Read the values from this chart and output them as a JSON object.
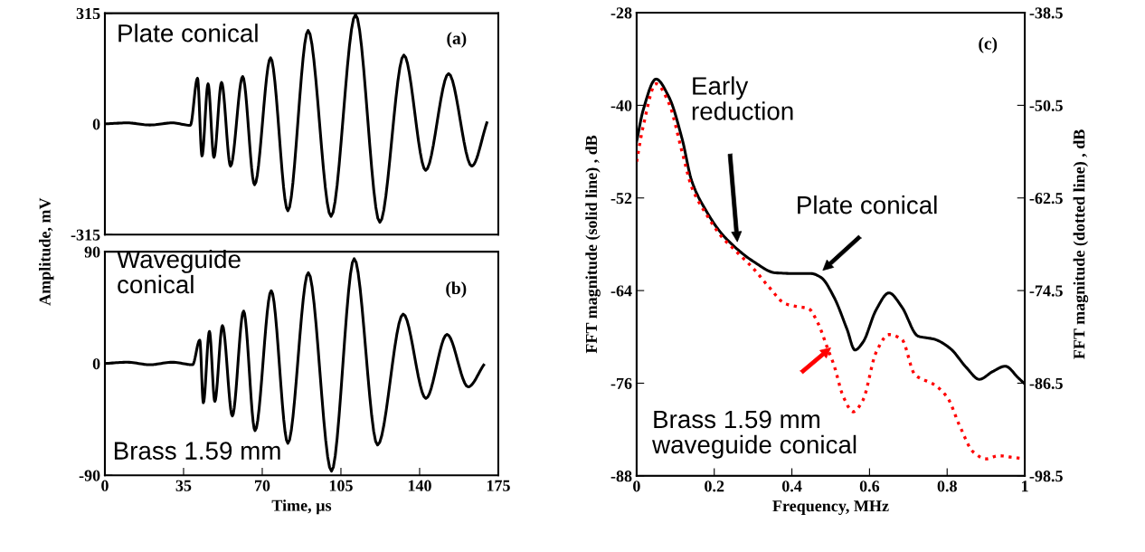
{
  "chart_data": [
    {
      "type": "line",
      "xlim": [
        0,
        175
      ],
      "ylim": [
        -315,
        315
      ],
      "yticks": [
        -315,
        0,
        315
      ],
      "tick_labels": "y",
      "grid": false,
      "legend": false,
      "annotations": [
        "Plate conical",
        "(a)"
      ],
      "series": [
        {
          "color": "#000000",
          "line_style": "solid",
          "x": [
            0,
            10,
            20,
            30,
            38,
            41.2,
            43.2,
            45.9,
            48.5,
            51.9,
            55.9,
            61.3,
            66.6,
            73.7,
            81.4,
            90.4,
            100.6,
            111.5,
            122.3,
            133.0,
            142.7,
            152.9,
            163.2,
            169.9
          ],
          "values": [
            0,
            3,
            -3,
            3,
            -4,
            130,
            -91,
            114,
            -95,
            118,
            -120,
            135,
            -173,
            188,
            -247,
            266,
            -263,
            311,
            -280,
            196,
            -132,
            143,
            -120,
            3
          ]
        }
      ]
    },
    {
      "type": "line",
      "xlim": [
        0,
        175
      ],
      "xticks": [
        0,
        35,
        70,
        105,
        140,
        175
      ],
      "ylim": [
        -90,
        90
      ],
      "yticks": [
        -90,
        0,
        90
      ],
      "xlabel": "Time, µs",
      "ylabel": "Amplitude, mV",
      "grid": false,
      "legend": false,
      "annotations": [
        "Waveguide\nconical",
        "Brass 1.59 mm",
        "(b)"
      ],
      "series": [
        {
          "color": "#000000",
          "line_style": "solid",
          "x": [
            0,
            10,
            20,
            30,
            39,
            42.2,
            43.8,
            46.5,
            48.9,
            52.3,
            56.7,
            61.7,
            66.8,
            74.0,
            81.4,
            90.5,
            100.8,
            110.9,
            121.3,
            132.7,
            142.8,
            152.2,
            161.6,
            168.5
          ],
          "values": [
            0,
            1,
            -1,
            1,
            -1,
            18.8,
            -31.6,
            25.8,
            -30.5,
            30.5,
            -42.2,
            42.2,
            -54.1,
            58.6,
            -64.2,
            73.1,
            -86.7,
            84.4,
            -65.6,
            39.8,
            -28.1,
            23.4,
            -18.8,
            -1.2
          ]
        }
      ]
    },
    {
      "type": "line",
      "xlim": [
        0,
        1
      ],
      "xticks": [
        0,
        0.2,
        0.4,
        0.6,
        0.8,
        1
      ],
      "ylim": [
        -88,
        -28
      ],
      "yticks": [
        -88,
        -76,
        -64,
        -52,
        -40,
        -28
      ],
      "y2lim": [
        -98.5,
        -38.5
      ],
      "y2ticks": [
        -98.5,
        -86.5,
        -74.5,
        -62.5,
        -50.5,
        -38.5
      ],
      "xlabel": "Frequency, MHz",
      "ylabel": "FFT magnitude (solid line) , dB",
      "y2label": "FFT magnitude (dotted line) , dB",
      "grid": false,
      "legend": false,
      "annotations": [
        "(c)",
        "Early\nreduction",
        "Plate conical",
        "Brass 1.59 mm\nwaveguide conical"
      ],
      "series": [
        {
          "color": "#000000",
          "line_style": "solid",
          "x": [
            0,
            0.017,
            0.05,
            0.083,
            0.117,
            0.142,
            0.183,
            0.217,
            0.254,
            0.3,
            0.358,
            0.417,
            0.45,
            0.475,
            0.508,
            0.542,
            0.5625,
            0.583,
            0.617,
            0.65,
            0.683,
            0.725,
            0.767,
            0.808,
            0.85,
            0.883,
            0.917,
            0.95,
            0.983,
            1.0
          ],
          "values": [
            -44.7,
            -40.6,
            -36.6,
            -38.9,
            -44.3,
            -49.8,
            -54.0,
            -56.5,
            -58.4,
            -60.2,
            -61.7,
            -61.8,
            -61.8,
            -62.3,
            -64.8,
            -69.0,
            -71.7,
            -70.7,
            -66.5,
            -64.3,
            -66.1,
            -69.9,
            -70.3,
            -71.5,
            -74.0,
            -75.5,
            -74.5,
            -73.8,
            -75.3,
            -76.1
          ]
        },
        {
          "color": "#ff0000",
          "line_style": "dotted",
          "axis": "y2",
          "x": [
            0,
            0.017,
            0.05,
            0.083,
            0.117,
            0.142,
            0.183,
            0.217,
            0.254,
            0.3,
            0.342,
            0.383,
            0.417,
            0.442,
            0.467,
            0.492,
            0.508,
            0.533,
            0.558,
            0.583,
            0.617,
            0.65,
            0.683,
            0.717,
            0.767,
            0.8,
            0.833,
            0.867,
            0.9,
            0.933,
            0.967,
            1.0
          ],
          "values": [
            -57.8,
            -53.2,
            -47.7,
            -50.2,
            -56.5,
            -61.1,
            -64.9,
            -67.4,
            -69.3,
            -71.6,
            -74.1,
            -76.2,
            -76.6,
            -76.8,
            -78.7,
            -82.0,
            -84.1,
            -88.3,
            -90.2,
            -88.7,
            -82.5,
            -80.2,
            -80.8,
            -85.4,
            -86.7,
            -88.3,
            -92.1,
            -95.4,
            -96.3,
            -95.9,
            -96.1,
            -96.3
          ]
        }
      ]
    }
  ]
}
